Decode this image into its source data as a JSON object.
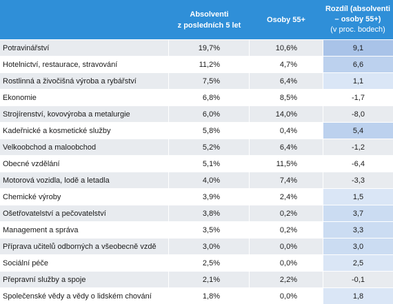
{
  "header": {
    "col1": "",
    "col2_line1": "Absolventi",
    "col2_line2": "z posledních 5 let",
    "col3": "Osoby 55+",
    "col4_line1": "Rozdíl (absolventi",
    "col4_line2": "– osoby 55+)",
    "col4_line3": "(v proc. bodech)"
  },
  "colors": {
    "header_bg": "#2f8fd8",
    "diff_positive_strong": "#a9c3e8",
    "diff_positive_light": "#d6e3f5",
    "row_stripe": "#e8ebef"
  },
  "rows": [
    {
      "name": "Potravinářství",
      "grad": "19,7%",
      "old": "10,6%",
      "diff": "9,1",
      "diff_value": 9.1
    },
    {
      "name": "Hotelnictví, restaurace, stravování",
      "grad": "11,2%",
      "old": "4,7%",
      "diff": "6,6",
      "diff_value": 6.6
    },
    {
      "name": "Rostlinná a živočišná výroba a rybářství",
      "grad": "7,5%",
      "old": "6,4%",
      "diff": "1,1",
      "diff_value": 1.1
    },
    {
      "name": "Ekonomie",
      "grad": "6,8%",
      "old": "8,5%",
      "diff": "-1,7",
      "diff_value": -1.7
    },
    {
      "name": "Strojírenství, kovovýroba a metalurgie",
      "grad": "6,0%",
      "old": "14,0%",
      "diff": "-8,0",
      "diff_value": -8.0
    },
    {
      "name": "Kadeřnické a kosmetické služby",
      "grad": "5,8%",
      "old": "0,4%",
      "diff": "5,4",
      "diff_value": 5.4
    },
    {
      "name": "Velkoobchod a maloobchod",
      "grad": "5,2%",
      "old": "6,4%",
      "diff": "-1,2",
      "diff_value": -1.2
    },
    {
      "name": "Obecné vzdělání",
      "grad": "5,1%",
      "old": "11,5%",
      "diff": "-6,4",
      "diff_value": -6.4
    },
    {
      "name": "Motorová vozidla, lodě a letadla",
      "grad": "4,0%",
      "old": "7,4%",
      "diff": "-3,3",
      "diff_value": -3.3
    },
    {
      "name": "Chemické výroby",
      "grad": "3,9%",
      "old": "2,4%",
      "diff": "1,5",
      "diff_value": 1.5
    },
    {
      "name": "Ošetřovatelství a pečovatelství",
      "grad": "3,8%",
      "old": "0,2%",
      "diff": "3,7",
      "diff_value": 3.7
    },
    {
      "name": "Management a správa",
      "grad": "3,5%",
      "old": "0,2%",
      "diff": "3,3",
      "diff_value": 3.3
    },
    {
      "name": "Příprava učitelů odborných a všeobecně vzdě",
      "grad": "3,0%",
      "old": "0,0%",
      "diff": "3,0",
      "diff_value": 3.0
    },
    {
      "name": "Sociální péče",
      "grad": "2,5%",
      "old": "0,0%",
      "diff": "2,5",
      "diff_value": 2.5
    },
    {
      "name": "Přepravní služby a spoje",
      "grad": "2,1%",
      "old": "2,2%",
      "diff": "-0,1",
      "diff_value": -0.1
    },
    {
      "name": "Společenské vědy a vědy o lidském chování",
      "grad": "1,8%",
      "old": "0,0%",
      "diff": "1,8",
      "diff_value": 1.8
    }
  ]
}
